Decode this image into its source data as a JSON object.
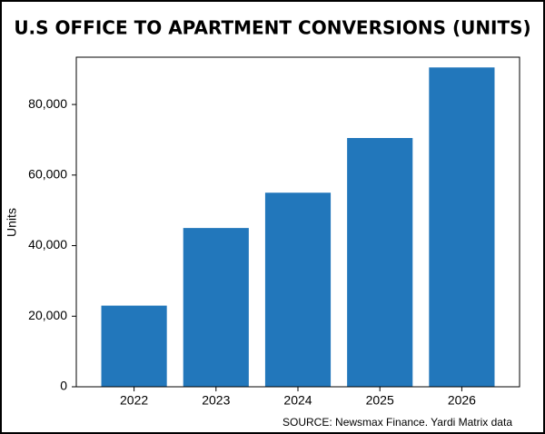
{
  "chart_data": {
    "type": "bar",
    "title": "U.S OFFICE TO APARTMENT CONVERSIONS (UNITS)",
    "y_label": "Units",
    "source": "SOURCE: Newsmax Finance. Yardi Matrix data",
    "categories": [
      "2022",
      "2023",
      "2024",
      "2025",
      "2026"
    ],
    "values": [
      23000,
      45000,
      55000,
      70500,
      90500
    ],
    "color": "#2277bb",
    "ylim": [
      0,
      93400
    ],
    "yticks": [
      0,
      {
        "value": 20000,
        "label": "20,000"
      },
      {
        "value": 40000,
        "label": "40,000"
      },
      {
        "value": 60000,
        "label": "60,000"
      },
      {
        "value": 80000,
        "label": "80,000"
      }
    ],
    "grid": false
  }
}
